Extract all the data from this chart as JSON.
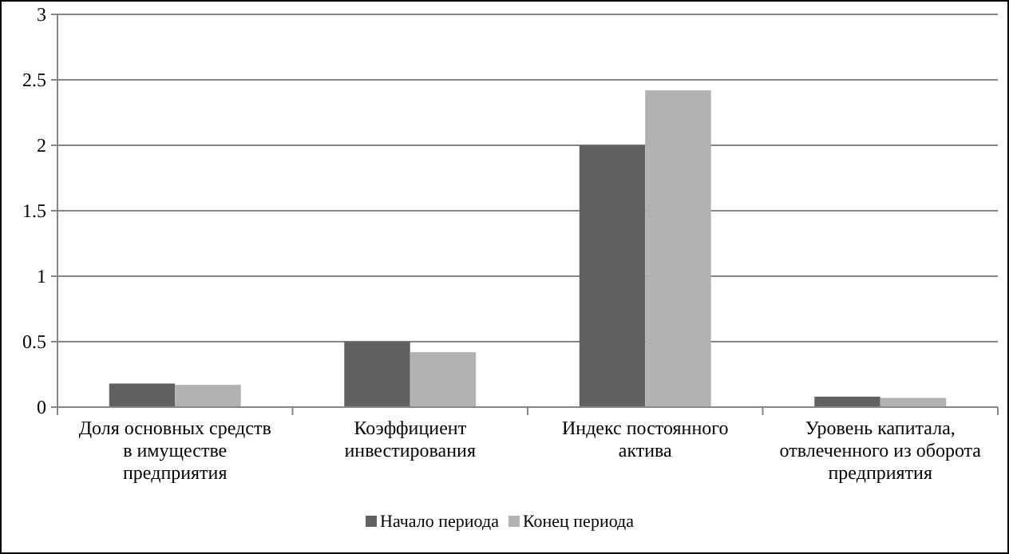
{
  "chart_data": {
    "type": "bar",
    "categories": [
      "Доля основных средств в имуществе предприятия",
      "Коэффициент инвестирования",
      "Индекс постоянного актива",
      "Уровень капитала, отвлеченного из оборота предприятия"
    ],
    "series": [
      {
        "name": "Начало периода",
        "color": "#616161",
        "values": [
          0.18,
          0.5,
          2.0,
          0.08
        ]
      },
      {
        "name": "Конец периода",
        "color": "#b2b2b2",
        "values": [
          0.17,
          0.42,
          2.42,
          0.07
        ]
      }
    ],
    "ylim": [
      0,
      3
    ],
    "yticks": [
      0,
      0.5,
      1,
      1.5,
      2,
      2.5,
      3
    ],
    "grid": "y",
    "legend": "bottom"
  }
}
